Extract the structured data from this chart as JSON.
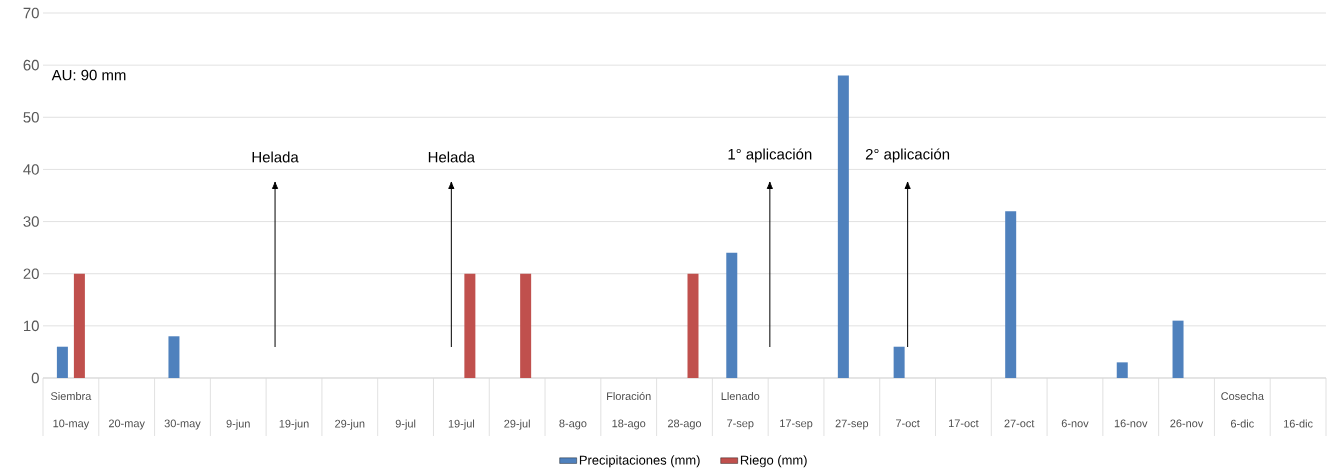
{
  "chart_data": {
    "type": "bar",
    "categories": [
      "10-may",
      "20-may",
      "30-may",
      "9-jun",
      "19-jun",
      "29-jun",
      "9-jul",
      "19-jul",
      "29-jul",
      "8-ago",
      "18-ago",
      "28-ago",
      "7-sep",
      "17-sep",
      "27-sep",
      "7-oct",
      "17-oct",
      "27-oct",
      "6-nov",
      "16-nov",
      "26-nov",
      "6-dic",
      "16-dic"
    ],
    "series": [
      {
        "name": "Precipitaciones (mm)",
        "color": "#4f81bd",
        "values": [
          6,
          null,
          8,
          null,
          null,
          null,
          null,
          null,
          null,
          null,
          null,
          null,
          24,
          null,
          58,
          6,
          null,
          32,
          null,
          3,
          11,
          null,
          null
        ]
      },
      {
        "name": "Riego (mm)",
        "color": "#c0504d",
        "values": [
          20,
          null,
          null,
          null,
          null,
          null,
          null,
          20,
          20,
          null,
          null,
          20,
          null,
          null,
          null,
          null,
          null,
          null,
          null,
          null,
          null,
          null,
          null
        ]
      }
    ],
    "ylim": [
      0,
      70
    ],
    "yticks": [
      0,
      10,
      20,
      30,
      40,
      50,
      60,
      70
    ],
    "grid": "y",
    "legend": "bottom",
    "annotations": [
      "AU: 90 mm",
      "Helada",
      "Helada",
      "1° aplicación",
      "2° aplicación",
      "Siembra",
      "Floración",
      "Llenado",
      "Cosecha"
    ]
  }
}
